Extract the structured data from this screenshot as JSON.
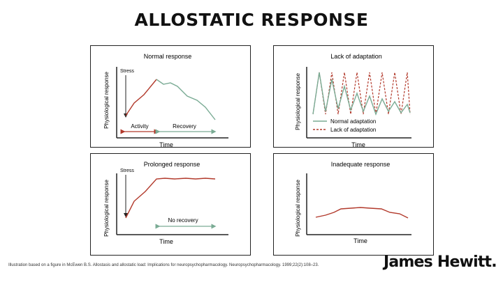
{
  "title": "ALLOSTATIC RESPONSE",
  "colors": {
    "red": "#b2392b",
    "green": "#7aab94",
    "axis": "#222222"
  },
  "panels": {
    "normal": {
      "title": "Normal response",
      "ylabel": "Physiological response",
      "xlabel": "Time",
      "stress_label": "Stress",
      "activity_label": "Activity",
      "recovery_label": "Recovery"
    },
    "adaptation": {
      "title": "Lack of adaptation",
      "ylabel": "Physiological response",
      "xlabel": "Time",
      "legend": {
        "normal": "Normal adaptation",
        "lack": "Lack of adaptation"
      }
    },
    "prolonged": {
      "title": "Prolonged response",
      "ylabel": "Physiological response",
      "xlabel": "Time",
      "stress_label": "Stress",
      "norecovery_label": "No recovery"
    },
    "inadequate": {
      "title": "Inadequate response",
      "ylabel": "Physiological response",
      "xlabel": "Time"
    }
  },
  "footer": "Illustration based on a figure in McEwen B.S. Allostasis and allostatic load: Implications for neuropsychopharmacology. Neuropsychopharmacology. 1999;22(2):108–23.",
  "logo": "James Hewitt."
}
